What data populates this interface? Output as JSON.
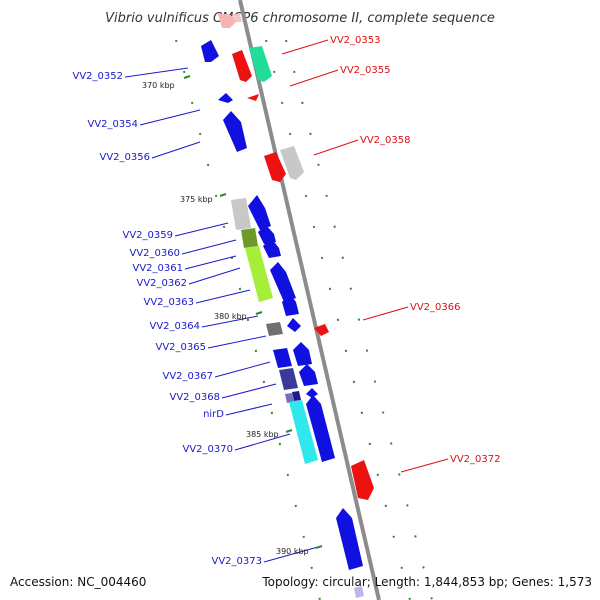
{
  "title": "Vibrio vulnificus CMCP6 chromosome II, complete sequence",
  "footer": {
    "accession": "Accession: NC_004460",
    "topology": "Topology: circular; Length: 1,844,853 bp; Genes: 1,573"
  },
  "colors": {
    "backbone": "#8c8c8c",
    "forward_label": "#1a1acc",
    "reverse_label": "#dd1111",
    "tick": "#2e8b2e"
  },
  "ticks": [
    {
      "label": "370 kbp"
    },
    {
      "label": "375 kbp"
    },
    {
      "label": "380 kbp"
    },
    {
      "label": "385 kbp"
    },
    {
      "label": "390 kbp"
    }
  ],
  "gene_labels": [
    {
      "text": "VV2_0352",
      "side": "left"
    },
    {
      "text": "VV2_0353",
      "side": "right"
    },
    {
      "text": "VV2_0355",
      "side": "right"
    },
    {
      "text": "VV2_0354",
      "side": "left"
    },
    {
      "text": "VV2_0356",
      "side": "left"
    },
    {
      "text": "VV2_0358",
      "side": "right"
    },
    {
      "text": "VV2_0359",
      "side": "left"
    },
    {
      "text": "VV2_0360",
      "side": "left"
    },
    {
      "text": "VV2_0361",
      "side": "left"
    },
    {
      "text": "VV2_0362",
      "side": "left"
    },
    {
      "text": "VV2_0363",
      "side": "left"
    },
    {
      "text": "VV2_0366",
      "side": "right"
    },
    {
      "text": "VV2_0364",
      "side": "left"
    },
    {
      "text": "VV2_0365",
      "side": "left"
    },
    {
      "text": "VV2_0367",
      "side": "left"
    },
    {
      "text": "VV2_0368",
      "side": "left"
    },
    {
      "text": "nirD",
      "side": "left"
    },
    {
      "text": "VV2_0370",
      "side": "left"
    },
    {
      "text": "VV2_0372",
      "side": "right"
    },
    {
      "text": "VV2_0373",
      "side": "left"
    }
  ]
}
